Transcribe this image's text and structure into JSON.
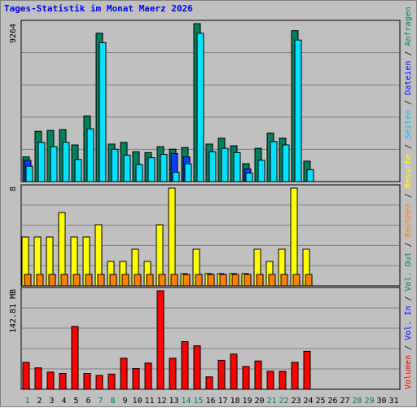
{
  "title": "Tages-Statistik im Monat Maerz 2026",
  "labels": {
    "top_max": "9264",
    "mid_max": "8",
    "bot_max": "142.81 MB",
    "right_top": [
      {
        "text": "Anfragen",
        "color": "#00805c"
      },
      {
        "text": " / ",
        "color": "#000000"
      },
      {
        "text": "Dateien",
        "color": "#0000ff"
      },
      {
        "text": " / ",
        "color": "#000000"
      },
      {
        "text": "Seiten",
        "color": "#00c0ff"
      },
      {
        "text": " / ",
        "color": "#000000"
      },
      {
        "text": "Besuche",
        "color": "#ffff00"
      },
      {
        "text": " / ",
        "color": "#000000"
      },
      {
        "text": "Rechner",
        "color": "#ff8000"
      },
      {
        "text": " / ",
        "color": "#000000"
      },
      {
        "text": "Vol. Out",
        "color": "#00805c"
      },
      {
        "text": " / ",
        "color": "#000000"
      },
      {
        "text": "Vol. In",
        "color": "#0000ff"
      },
      {
        "text": " / ",
        "color": "#000000"
      },
      {
        "text": "Volumen",
        "color": "#ff0000"
      }
    ]
  },
  "colors": {
    "anfragen": "#00805c",
    "dateien": "#0040ff",
    "seiten": "#00e0ff",
    "besuche": "#ffff00",
    "rechner": "#ff8000",
    "volumen": "#ff0000",
    "weekend_label": "#00805c",
    "weekday_label": "#000000"
  },
  "chart_data": [
    {
      "type": "bar",
      "title": "Tages-Statistik im Monat Maerz 2026",
      "categories": [
        "1",
        "2",
        "3",
        "4",
        "5",
        "6",
        "7",
        "8",
        "9",
        "10",
        "11",
        "12",
        "13",
        "14",
        "15",
        "16",
        "17",
        "18",
        "19",
        "20",
        "21",
        "22",
        "23",
        "24",
        "25",
        "26",
        "27",
        "28",
        "29",
        "30",
        "31"
      ],
      "weekend_days": [
        "1",
        "7",
        "8",
        "14",
        "15",
        "21",
        "22",
        "28",
        "29"
      ],
      "ylim": [
        0,
        9264
      ],
      "series": [
        {
          "name": "Anfragen",
          "values": [
            1450,
            2950,
            3000,
            3050,
            2150,
            3850,
            8700,
            2200,
            2300,
            1750,
            1700,
            2050,
            1900,
            2000,
            9264,
            2200,
            2550,
            2100,
            1050,
            1950,
            2850,
            2550,
            8850,
            1200,
            0,
            0,
            0,
            0,
            0,
            0,
            0
          ]
        },
        {
          "name": "Dateien",
          "values": [
            1250,
            0,
            0,
            0,
            0,
            0,
            0,
            0,
            0,
            0,
            0,
            0,
            1650,
            1450,
            0,
            0,
            0,
            0,
            750,
            0,
            0,
            0,
            0,
            0,
            0,
            0,
            0,
            0,
            0,
            0,
            0
          ]
        },
        {
          "name": "Seiten",
          "values": [
            900,
            2300,
            2050,
            2300,
            1300,
            3100,
            8150,
            1900,
            1550,
            1000,
            1400,
            1600,
            550,
            1050,
            8700,
            1750,
            1950,
            1700,
            500,
            1250,
            2350,
            2150,
            8300,
            700,
            0,
            0,
            0,
            0,
            0,
            0,
            0
          ]
        }
      ]
    },
    {
      "type": "bar",
      "categories": [
        "1",
        "2",
        "3",
        "4",
        "5",
        "6",
        "7",
        "8",
        "9",
        "10",
        "11",
        "12",
        "13",
        "14",
        "15",
        "16",
        "17",
        "18",
        "19",
        "20",
        "21",
        "22",
        "23",
        "24",
        "25",
        "26",
        "27",
        "28",
        "29",
        "30",
        "31"
      ],
      "ylim": [
        0,
        8
      ],
      "series": [
        {
          "name": "Besuche",
          "values": [
            4,
            4,
            4,
            6,
            4,
            4,
            5,
            2,
            2,
            3,
            2,
            5,
            8,
            1,
            3,
            1,
            1,
            1,
            1,
            3,
            2,
            3,
            8,
            3,
            0,
            0,
            0,
            0,
            0,
            0,
            0
          ]
        },
        {
          "name": "Rechner",
          "values": [
            1,
            1,
            1,
            1,
            1,
            1,
            1,
            1,
            1,
            1,
            1,
            1,
            1,
            1,
            1,
            1,
            1,
            1,
            1,
            1,
            1,
            1,
            1,
            1,
            0,
            0,
            0,
            0,
            0,
            0,
            0
          ]
        }
      ]
    },
    {
      "type": "bar",
      "categories": [
        "1",
        "2",
        "3",
        "4",
        "5",
        "6",
        "7",
        "8",
        "9",
        "10",
        "11",
        "12",
        "13",
        "14",
        "15",
        "16",
        "17",
        "18",
        "19",
        "20",
        "21",
        "22",
        "23",
        "24",
        "25",
        "26",
        "27",
        "28",
        "29",
        "30",
        "31"
      ],
      "ylim": [
        0,
        142.81
      ],
      "ylabel": "MB",
      "series": [
        {
          "name": "Volumen",
          "values": [
            39,
            31,
            25,
            23,
            91,
            23,
            20,
            22,
            45,
            30,
            38,
            142.81,
            45,
            69,
            63,
            18,
            42,
            51,
            33,
            41,
            26,
            26,
            39,
            55,
            0,
            0,
            0,
            0,
            0,
            0,
            0
          ]
        }
      ]
    }
  ]
}
